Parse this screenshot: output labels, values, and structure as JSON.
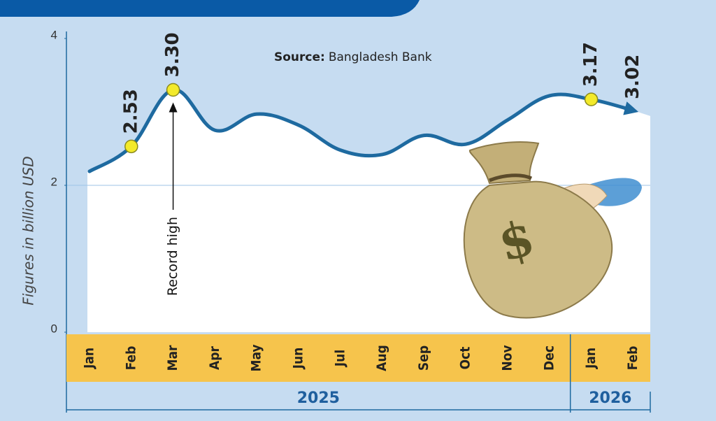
{
  "chart_data": {
    "type": "line",
    "y_label": "Figures in billion USD",
    "source_label": "Source:",
    "source": "Bangladesh Bank",
    "annotation": "Record high",
    "category_groups": [
      {
        "label": "2025",
        "categories": [
          "Jan",
          "Feb",
          "Mar",
          "Apr",
          "May",
          "Jun",
          "Jul",
          "Aug",
          "Sep",
          "Oct",
          "Nov",
          "Dec"
        ]
      },
      {
        "label": "2026",
        "categories": [
          "Jan",
          "Feb"
        ]
      }
    ],
    "values": [
      2.19,
      2.53,
      3.3,
      2.75,
      2.97,
      2.82,
      2.48,
      2.42,
      2.68,
      2.56,
      2.89,
      3.22,
      3.17,
      3.02
    ],
    "value_labels": [
      null,
      "2.53",
      "3.30",
      null,
      null,
      null,
      null,
      null,
      null,
      null,
      null,
      null,
      "3.17",
      "3.02"
    ],
    "annotated_index": 2,
    "color": "#1e6aa0",
    "marker_color": "#f3ea2a",
    "ylim": [
      0,
      4
    ],
    "yticks": [
      0,
      2,
      4
    ],
    "grid": true
  }
}
